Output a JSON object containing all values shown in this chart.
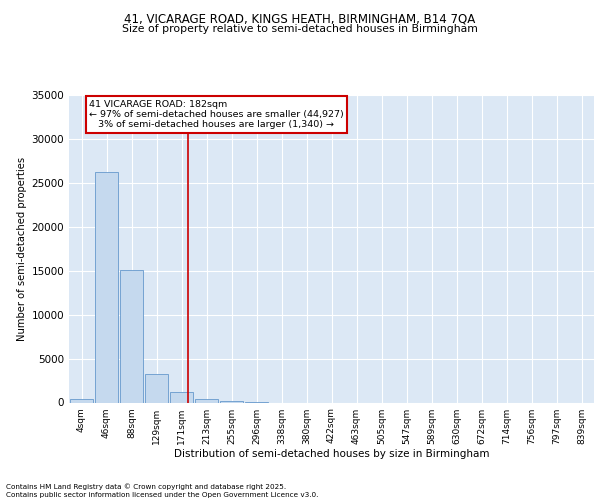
{
  "title_line1": "41, VICARAGE ROAD, KINGS HEATH, BIRMINGHAM, B14 7QA",
  "title_line2": "Size of property relative to semi-detached houses in Birmingham",
  "xlabel": "Distribution of semi-detached houses by size in Birmingham",
  "ylabel": "Number of semi-detached properties",
  "categories": [
    "4sqm",
    "46sqm",
    "88sqm",
    "129sqm",
    "171sqm",
    "213sqm",
    "255sqm",
    "296sqm",
    "338sqm",
    "380sqm",
    "422sqm",
    "463sqm",
    "505sqm",
    "547sqm",
    "589sqm",
    "630sqm",
    "672sqm",
    "714sqm",
    "756sqm",
    "797sqm",
    "839sqm"
  ],
  "values": [
    400,
    26200,
    15100,
    3200,
    1200,
    450,
    200,
    50,
    0,
    0,
    0,
    0,
    0,
    0,
    0,
    0,
    0,
    0,
    0,
    0,
    0
  ],
  "bar_color": "#c5d9ee",
  "bar_edge_color": "#6699cc",
  "vline_x": 4.26,
  "vline_color": "#cc0000",
  "annotation_line1": "41 VICARAGE ROAD: 182sqm",
  "annotation_line2": "← 97% of semi-detached houses are smaller (44,927)",
  "annotation_line3": "   3% of semi-detached houses are larger (1,340) →",
  "annotation_box_color": "#ffffff",
  "annotation_box_edge": "#cc0000",
  "ylim": [
    0,
    35000
  ],
  "yticks": [
    0,
    5000,
    10000,
    15000,
    20000,
    25000,
    30000,
    35000
  ],
  "background_color": "#dce8f5",
  "grid_color": "#ffffff",
  "footer_line1": "Contains HM Land Registry data © Crown copyright and database right 2025.",
  "footer_line2": "Contains public sector information licensed under the Open Government Licence v3.0."
}
